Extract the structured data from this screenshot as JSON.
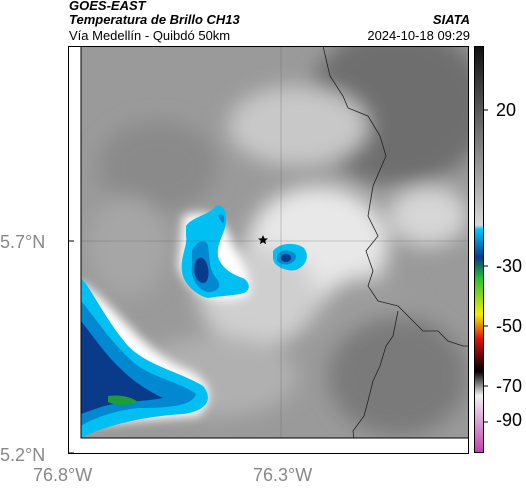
{
  "header": {
    "source": "GOES-EAST",
    "product": "Temperatura de Brillo CH13",
    "route": "Vía Medellín - Quibdó 50km",
    "brand": "SIATA",
    "timestamp": "2024-10-18 09:29"
  },
  "map": {
    "latitude_labels": [
      "5.7°N",
      "5.2°N"
    ],
    "longitude_labels": [
      "76.8°W",
      "76.3°W"
    ],
    "marker_icon": "star-icon"
  },
  "colorbar": {
    "tick_labels": [
      "20",
      "-30",
      "-50",
      "-70",
      "-90"
    ],
    "colors": {
      "dark": "#111111",
      "light_gray": "#d8d8d8",
      "cyan": "#00c8ff",
      "blue": "#0a3a8a",
      "green": "#22c030",
      "yellow": "#f0f000",
      "red": "#e01010",
      "black": "#000000",
      "magenta": "#c040b0"
    }
  }
}
